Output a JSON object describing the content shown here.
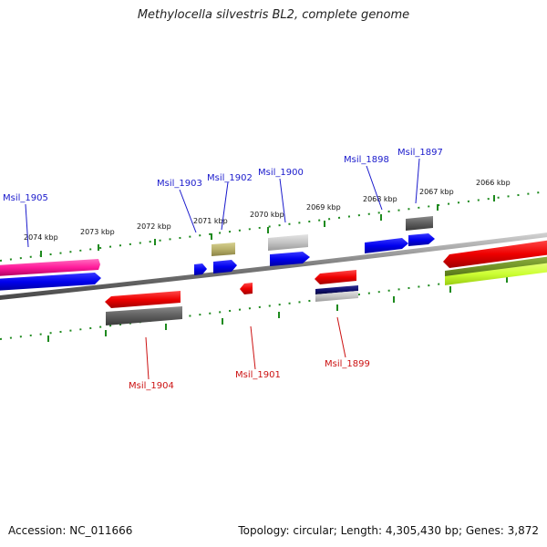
{
  "title": "Methylocella silvestris BL2, complete genome",
  "footer": {
    "accession": "Accession: NC_011666",
    "summary": "Topology: circular; Length: 4,305,430 bp; Genes: 3,872"
  },
  "scale_labels": [
    "2074 kbp",
    "2073 kbp",
    "2072 kbp",
    "2071 kbp",
    "2070 kbp",
    "2069 kbp",
    "2068 kbp",
    "2067 kbp",
    "2066 kbp"
  ],
  "gene_labels": {
    "forward": [
      "Msil_1905",
      "Msil_1903",
      "Msil_1902",
      "Msil_1900",
      "Msil_1898",
      "Msil_1897"
    ],
    "reverse": [
      "Msil_1904",
      "Msil_1901",
      "Msil_1899"
    ]
  },
  "colors": {
    "forward_label": "#1a1acc",
    "reverse_label": "#cc1111",
    "ticks": "#1e8a1e",
    "backbone": "#7a7a7a"
  }
}
